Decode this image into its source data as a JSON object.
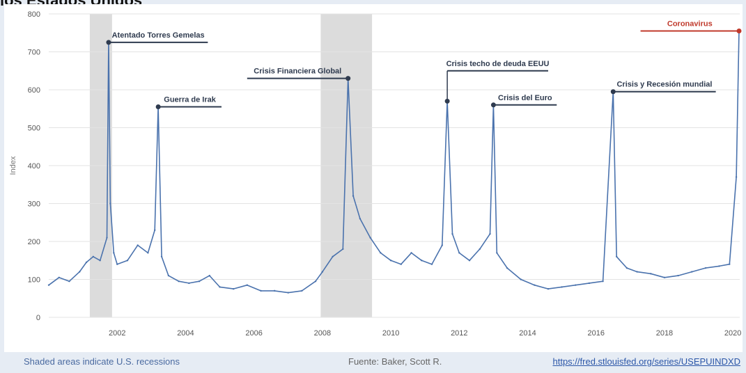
{
  "title": "los Estados Unidos",
  "footer": {
    "note": "Shaded areas indicate U.S. recessions",
    "source": "Fuente: Baker, Scott R.",
    "url": "https://fred.stlouisfed.org/series/USEPUINDXD"
  },
  "colors": {
    "series": "#4a72ad",
    "recession": "#dcdcdc",
    "annotation": "#2f3b4f",
    "highlight": "#c0392b",
    "grid": "#e3e3e3"
  },
  "chart_data": {
    "type": "line",
    "ylabel": "Index",
    "xlabel": "",
    "xlim": [
      2000.0,
      2020.2
    ],
    "ylim": [
      0,
      800
    ],
    "yticks": [
      0,
      100,
      200,
      300,
      400,
      500,
      600,
      700,
      800
    ],
    "xticks": [
      2002,
      2004,
      2006,
      2008,
      2010,
      2012,
      2014,
      2016,
      2018,
      2020
    ],
    "grid": true,
    "recessions": [
      [
        2001.2,
        2001.85
      ],
      [
        2007.95,
        2009.45
      ]
    ],
    "series": [
      {
        "values": [
          [
            2000.0,
            85
          ],
          [
            2000.3,
            105
          ],
          [
            2000.6,
            95
          ],
          [
            2000.9,
            120
          ],
          [
            2001.1,
            145
          ],
          [
            2001.3,
            160
          ],
          [
            2001.5,
            150
          ],
          [
            2001.7,
            210
          ],
          [
            2001.75,
            725
          ],
          [
            2001.8,
            300
          ],
          [
            2001.9,
            170
          ],
          [
            2002.0,
            140
          ],
          [
            2002.3,
            150
          ],
          [
            2002.6,
            190
          ],
          [
            2002.9,
            170
          ],
          [
            2003.1,
            230
          ],
          [
            2003.2,
            555
          ],
          [
            2003.3,
            160
          ],
          [
            2003.5,
            110
          ],
          [
            2003.8,
            95
          ],
          [
            2004.1,
            90
          ],
          [
            2004.4,
            95
          ],
          [
            2004.7,
            110
          ],
          [
            2005.0,
            80
          ],
          [
            2005.4,
            75
          ],
          [
            2005.8,
            85
          ],
          [
            2006.2,
            70
          ],
          [
            2006.6,
            70
          ],
          [
            2007.0,
            65
          ],
          [
            2007.4,
            70
          ],
          [
            2007.8,
            95
          ],
          [
            2008.0,
            120
          ],
          [
            2008.3,
            160
          ],
          [
            2008.6,
            180
          ],
          [
            2008.75,
            630
          ],
          [
            2008.9,
            320
          ],
          [
            2009.1,
            260
          ],
          [
            2009.4,
            210
          ],
          [
            2009.7,
            170
          ],
          [
            2010.0,
            150
          ],
          [
            2010.3,
            140
          ],
          [
            2010.6,
            170
          ],
          [
            2010.9,
            150
          ],
          [
            2011.2,
            140
          ],
          [
            2011.5,
            190
          ],
          [
            2011.65,
            570
          ],
          [
            2011.8,
            220
          ],
          [
            2012.0,
            170
          ],
          [
            2012.3,
            150
          ],
          [
            2012.6,
            180
          ],
          [
            2012.9,
            220
          ],
          [
            2013.0,
            560
          ],
          [
            2013.1,
            170
          ],
          [
            2013.4,
            130
          ],
          [
            2013.8,
            100
          ],
          [
            2014.2,
            85
          ],
          [
            2014.6,
            75
          ],
          [
            2015.0,
            80
          ],
          [
            2015.4,
            85
          ],
          [
            2015.8,
            90
          ],
          [
            2016.2,
            95
          ],
          [
            2016.5,
            595
          ],
          [
            2016.6,
            160
          ],
          [
            2016.9,
            130
          ],
          [
            2017.2,
            120
          ],
          [
            2017.6,
            115
          ],
          [
            2018.0,
            105
          ],
          [
            2018.4,
            110
          ],
          [
            2018.8,
            120
          ],
          [
            2019.2,
            130
          ],
          [
            2019.6,
            135
          ],
          [
            2019.9,
            140
          ],
          [
            2020.1,
            370
          ],
          [
            2020.18,
            755
          ]
        ]
      }
    ],
    "annotations": [
      {
        "label": "Atentado Torres Gemelas",
        "x": 2001.75,
        "y": 725,
        "label_y": 725,
        "side": "right",
        "label_end": 2004.65
      },
      {
        "label": "Guerra de Irak",
        "x": 2003.2,
        "y": 555,
        "label_y": 555,
        "side": "right",
        "label_end": 2005.05
      },
      {
        "label": "Crisis Financiera Global",
        "x": 2008.75,
        "y": 630,
        "label_y": 630,
        "side": "left",
        "label_end": 2005.8
      },
      {
        "label": "Crisis techo de deuda EEUU",
        "x": 2011.65,
        "y": 570,
        "label_y": 650,
        "side": "right",
        "label_end": 2014.6
      },
      {
        "label": "Crisis del Euro",
        "x": 2013.0,
        "y": 560,
        "label_y": 560,
        "side": "right",
        "label_end": 2014.85
      },
      {
        "label": "Crisis y Recesión mundial",
        "x": 2016.5,
        "y": 595,
        "label_y": 595,
        "side": "right",
        "label_end": 2019.5
      },
      {
        "label": "Coronavirus",
        "x": 2020.18,
        "y": 755,
        "label_y": 755,
        "side": "left",
        "label_end": 2017.3,
        "highlight": true
      }
    ]
  }
}
